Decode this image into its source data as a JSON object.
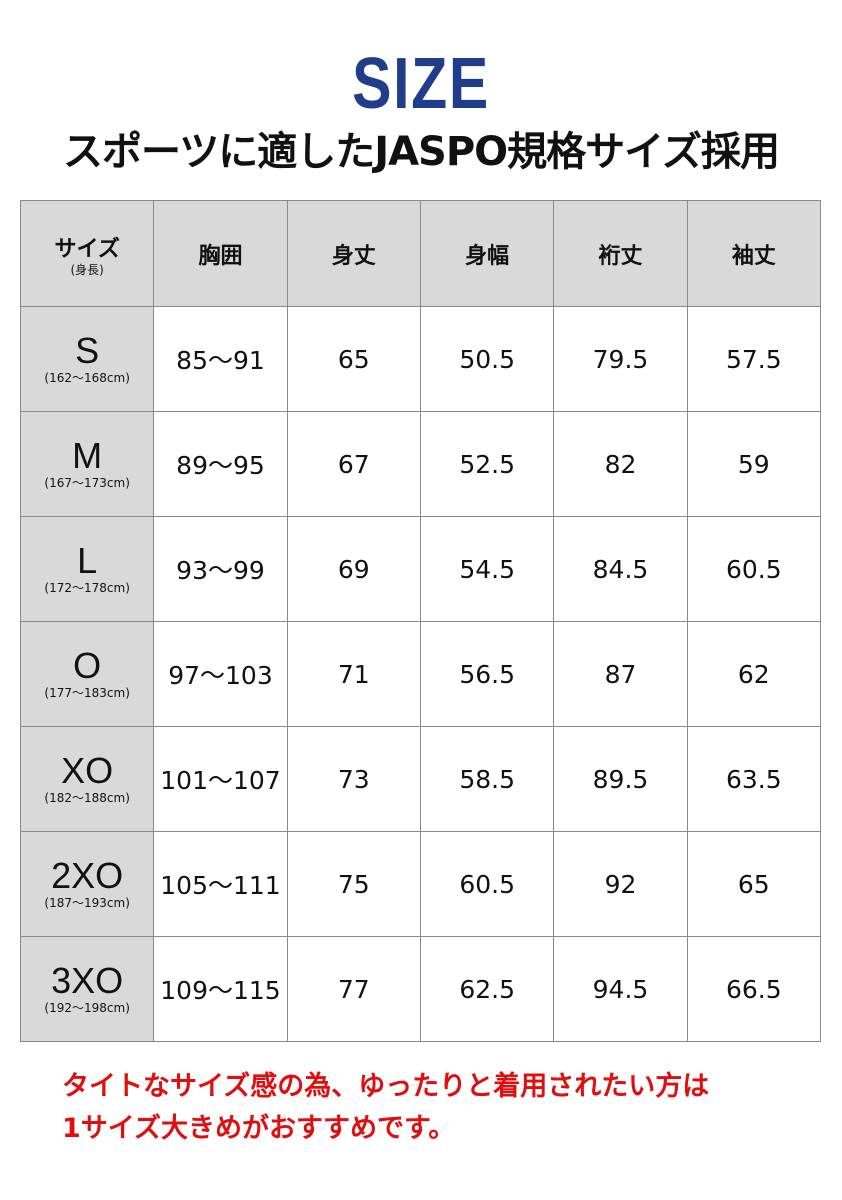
{
  "title": "SIZE",
  "subtitle": "スポーツに適したJASPO規格サイズ採用",
  "table": {
    "headers": {
      "size": "サイズ",
      "size_sub": "(身長)",
      "cols": [
        "胸囲",
        "身丈",
        "身幅",
        "裄丈",
        "袖丈"
      ]
    },
    "rows": [
      {
        "size": "S",
        "height": "(162〜168cm)",
        "values": [
          "85〜91",
          "65",
          "50.5",
          "79.5",
          "57.5"
        ]
      },
      {
        "size": "M",
        "height": "(167〜173cm)",
        "values": [
          "89〜95",
          "67",
          "52.5",
          "82",
          "59"
        ]
      },
      {
        "size": "L",
        "height": "(172〜178cm)",
        "values": [
          "93〜99",
          "69",
          "54.5",
          "84.5",
          "60.5"
        ]
      },
      {
        "size": "O",
        "height": "(177〜183cm)",
        "values": [
          "97〜103",
          "71",
          "56.5",
          "87",
          "62"
        ]
      },
      {
        "size": "XO",
        "height": "(182〜188cm)",
        "values": [
          "101〜107",
          "73",
          "58.5",
          "89.5",
          "63.5"
        ]
      },
      {
        "size": "2XO",
        "height": "(187〜193cm)",
        "values": [
          "105〜111",
          "75",
          "60.5",
          "92",
          "65"
        ]
      },
      {
        "size": "3XO",
        "height": "(192〜198cm)",
        "values": [
          "109〜115",
          "77",
          "62.5",
          "94.5",
          "66.5"
        ]
      }
    ]
  },
  "note": {
    "line1": "タイトなサイズ感の為、ゆったりと着用されたい方は",
    "line2": "1サイズ大きめがおすすめです。"
  },
  "colors": {
    "title": "#1f3d8a",
    "note": "#e00e0e",
    "header_bg": "#d9d9d9"
  }
}
